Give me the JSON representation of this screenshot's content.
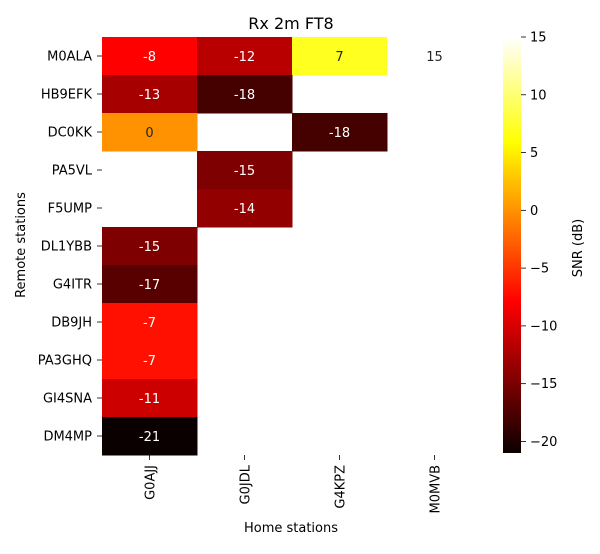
{
  "chart_data": {
    "type": "heatmap",
    "title": "Rx 2m FT8",
    "xlabel": "Home stations",
    "ylabel": "Remote stations",
    "x_categories": [
      "G0AJJ",
      "G0JDL",
      "G4KPZ",
      "M0MVB"
    ],
    "y_categories": [
      "M0ALA",
      "HB9EFK",
      "DC0KK",
      "PA5VL",
      "F5UMP",
      "DL1YBB",
      "G4ITR",
      "DB9JH",
      "PA3GHQ",
      "GI4SNA",
      "DM4MP"
    ],
    "values": [
      [
        -8,
        -12,
        7,
        15
      ],
      [
        -13,
        -18,
        null,
        null
      ],
      [
        0,
        null,
        -18,
        null
      ],
      [
        null,
        -15,
        null,
        null
      ],
      [
        null,
        -14,
        null,
        null
      ],
      [
        -15,
        null,
        null,
        null
      ],
      [
        -17,
        null,
        null,
        null
      ],
      [
        -7,
        null,
        null,
        null
      ],
      [
        -7,
        null,
        null,
        null
      ],
      [
        -11,
        null,
        null,
        null
      ],
      [
        -21,
        null,
        null,
        null
      ]
    ],
    "colormap": "hot",
    "colorbar": {
      "label": "SNR (dB)",
      "range": [
        -21,
        15
      ],
      "ticks": [
        15,
        10,
        5,
        0,
        -5,
        -10,
        -15,
        -20
      ],
      "tick_labels": [
        "15",
        "10",
        "5",
        "0",
        "−5",
        "−10",
        "−15",
        "−20"
      ]
    },
    "grid": false
  }
}
